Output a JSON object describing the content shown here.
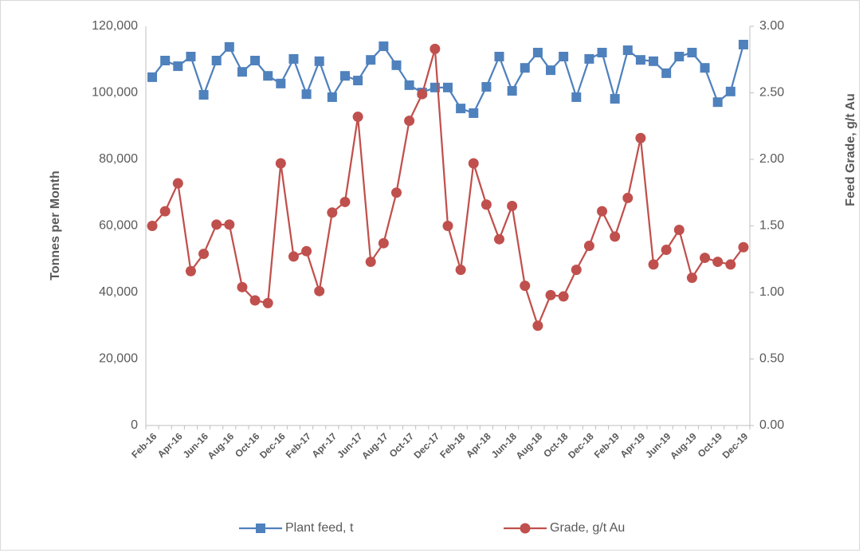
{
  "chart_data": {
    "type": "line",
    "categories": [
      "Feb-16",
      null,
      "Apr-16",
      null,
      "Jun-16",
      null,
      "Aug-16",
      null,
      "Oct-16",
      null,
      "Dec-16",
      null,
      "Feb-17",
      null,
      "Apr-17",
      null,
      "Jun-17",
      null,
      "Aug-17",
      null,
      "Oct-17",
      null,
      "Dec-17",
      null,
      "Feb-18",
      null,
      "Apr-18",
      null,
      "Jun-18",
      null,
      "Aug-18",
      null,
      "Oct-18",
      null,
      "Dec-18",
      null,
      "Feb-19",
      null,
      "Apr-19",
      null,
      "Jun-19",
      null,
      "Aug-19",
      null,
      "Oct-19",
      null,
      "Dec-19"
    ],
    "series": [
      {
        "name": "Plant feed, t",
        "color": "#4f81bd",
        "marker": "square",
        "values": [
          104700,
          109700,
          108000,
          110900,
          99400,
          109700,
          113800,
          106300,
          109700,
          105100,
          102800,
          110200,
          99600,
          109500,
          98700,
          105100,
          103700,
          109900,
          114000,
          108300,
          102300,
          100100,
          101600,
          101600,
          95300,
          93900,
          101800,
          110900,
          100600,
          107500,
          112100,
          106800,
          110900,
          98700,
          110200,
          112100,
          98200,
          112800,
          109900,
          109500,
          105900,
          110900,
          112100,
          107500,
          97200,
          100400,
          114500
        ]
      },
      {
        "name": "Grade, g/t Au",
        "color": "#c0504d",
        "marker": "circle",
        "axis": "y2",
        "values": [
          1.5,
          1.61,
          1.82,
          1.16,
          1.29,
          1.51,
          1.51,
          1.04,
          0.94,
          0.92,
          1.97,
          1.27,
          1.31,
          1.01,
          1.6,
          1.68,
          2.32,
          1.23,
          1.37,
          1.75,
          2.29,
          2.49,
          2.83,
          1.5,
          1.17,
          1.97,
          1.66,
          1.4,
          1.65,
          1.05,
          0.75,
          0.98,
          0.97,
          1.17,
          1.35,
          1.61,
          1.42,
          1.71,
          2.16,
          1.21,
          1.32,
          1.47,
          1.11,
          1.26,
          1.23,
          1.21,
          1.34
        ]
      }
    ],
    "ylabel": "Tonnes per Month",
    "y2label": "Feed Grade, g/t Au",
    "ylim": [
      0,
      120000
    ],
    "yticks": [
      0,
      {
        "value": 20000,
        "label": "20,000"
      },
      {
        "value": 40000,
        "label": "40,000"
      },
      {
        "value": 60000,
        "label": "60,000"
      },
      {
        "value": 80000,
        "label": "80,000"
      },
      {
        "value": 100000,
        "label": "100,000"
      },
      {
        "value": 120000,
        "label": "120,000"
      }
    ],
    "y2lim": [
      0,
      3
    ],
    "y2ticks": [
      {
        "value": 0,
        "label": "0.00"
      },
      {
        "value": 0.5,
        "label": "0.50"
      },
      {
        "value": 1,
        "label": "1.00"
      },
      {
        "value": 1.5,
        "label": "1.50"
      },
      {
        "value": 2,
        "label": "2.00"
      },
      {
        "value": 2.5,
        "label": "2.50"
      },
      {
        "value": 3,
        "label": "3.00"
      }
    ],
    "legend": "bottom"
  }
}
